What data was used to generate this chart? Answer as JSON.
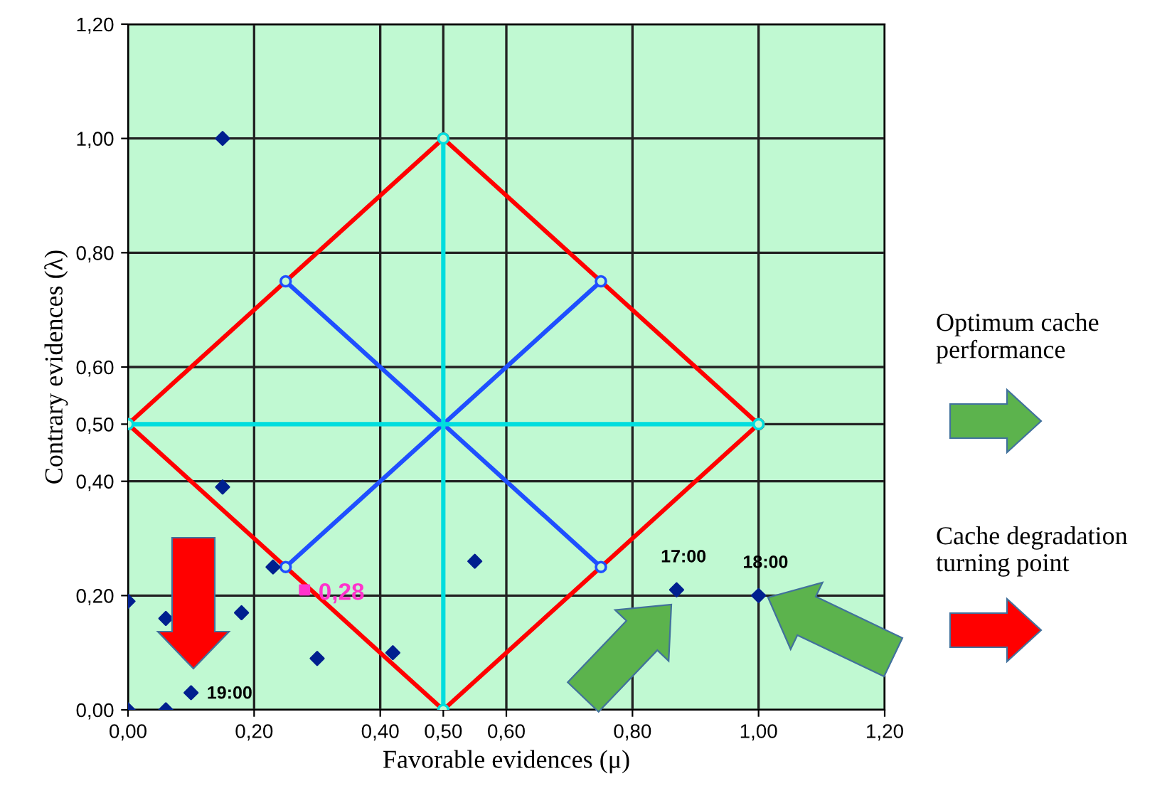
{
  "chart_data": {
    "type": "scatter",
    "xlabel": "Favorable evidences (μ)",
    "ylabel": "Contrary evidences (λ)",
    "xlim": [
      0,
      1.2
    ],
    "ylim": [
      0,
      1.2
    ],
    "xticks": [
      {
        "value": 0,
        "label": "0,00"
      },
      {
        "value": 0.2,
        "label": "0,20"
      },
      {
        "value": 0.4,
        "label": "0,40"
      },
      {
        "value": 0.5,
        "label": "0,50"
      },
      {
        "value": 0.6,
        "label": "0,60"
      },
      {
        "value": 0.8,
        "label": "0,80"
      },
      {
        "value": 1,
        "label": "1,00"
      },
      {
        "value": 1.2,
        "label": "1,20"
      }
    ],
    "yticks": [
      {
        "value": 0,
        "label": "0,00"
      },
      {
        "value": 0.2,
        "label": "0,20"
      },
      {
        "value": 0.4,
        "label": "0,40"
      },
      {
        "value": 0.5,
        "label": "0,50"
      },
      {
        "value": 0.6,
        "label": "0,60"
      },
      {
        "value": 0.8,
        "label": "0,80"
      },
      {
        "value": 1,
        "label": "1,00"
      },
      {
        "value": 1.2,
        "label": "1,20"
      }
    ],
    "grid": true,
    "series": [
      {
        "type": "line",
        "color": "#ff0000",
        "marker": "circle",
        "x": [
          0,
          0.5,
          1
        ],
        "values": [
          0.5,
          1,
          0.5
        ]
      },
      {
        "type": "line",
        "color": "#ff0000",
        "marker": "circle",
        "x": [
          0,
          0.5,
          1
        ],
        "values": [
          0.5,
          0,
          0.5
        ]
      },
      {
        "type": "line",
        "color": "#1f4fff",
        "marker": "circle",
        "x": [
          0.25,
          0.75
        ],
        "values": [
          0.75,
          0.25
        ]
      },
      {
        "type": "line",
        "color": "#1f4fff",
        "marker": "circle",
        "x": [
          0.25,
          0.75
        ],
        "values": [
          0.25,
          0.75
        ]
      },
      {
        "type": "line",
        "color": "#00dede",
        "marker": "circle",
        "x": [
          0,
          1
        ],
        "values": [
          0.5,
          0.5
        ]
      },
      {
        "type": "line",
        "color": "#00dede",
        "marker": "circle",
        "x": [
          0.5,
          0.5
        ],
        "values": [
          0,
          1
        ]
      },
      {
        "color": "#00208f",
        "marker": "diamond",
        "x": [
          0,
          0,
          0.06,
          0.06,
          0.1,
          0.15,
          0.15,
          0.18,
          0.23,
          0.3,
          0.42,
          0.55,
          0.87,
          1.0
        ],
        "values": [
          0,
          0.19,
          0.16,
          0,
          0.03,
          0.39,
          1.0,
          0.17,
          0.25,
          0.09,
          0.1,
          0.26,
          0.21,
          0.2
        ]
      },
      {
        "color": "#ff33cc",
        "marker": "square",
        "x": [
          0.28
        ],
        "values": [
          0.21
        ]
      }
    ],
    "annotations": [
      {
        "text": "0,28",
        "x": 0.28,
        "y": 0.21
      },
      {
        "text": "17:00",
        "x": 0.87,
        "y": 0.21
      },
      {
        "text": "18:00",
        "x": 1.0,
        "y": 0.2
      },
      {
        "text": "19:00",
        "x": 0.1,
        "y": 0.03
      },
      "Optimum cache\nperformance",
      "Cache degradation\nturning point"
    ]
  }
}
